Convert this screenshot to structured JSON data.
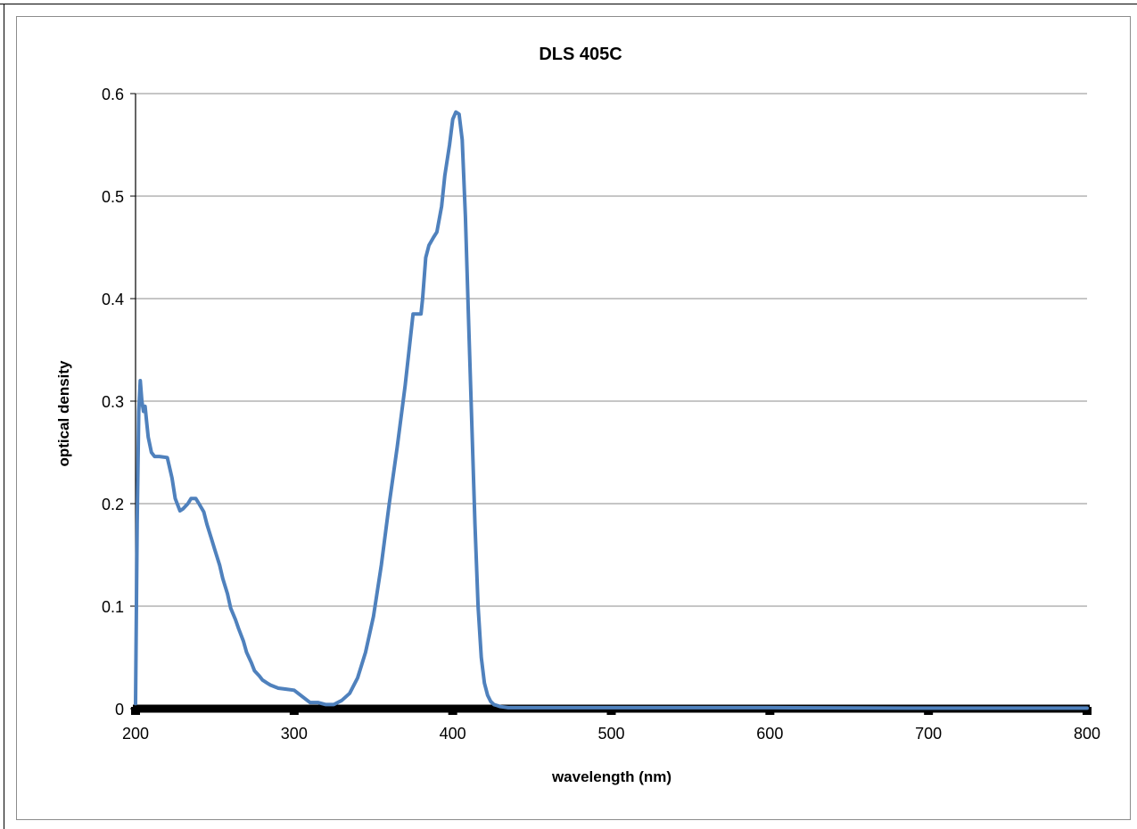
{
  "chart_data": {
    "type": "line",
    "title": "DLS 405C",
    "xlabel": "wavelength (nm)",
    "ylabel": "optical density",
    "xlim": [
      200,
      800
    ],
    "ylim": [
      0,
      0.6
    ],
    "x_ticks": [
      200,
      300,
      400,
      500,
      600,
      700,
      800
    ],
    "y_ticks": [
      0,
      0.1,
      0.2,
      0.3,
      0.4,
      0.5,
      0.6
    ],
    "x_tick_labels": [
      "200",
      "300",
      "400",
      "500",
      "600",
      "700",
      "800"
    ],
    "y_tick_labels": [
      "0",
      "0.1",
      "0.2",
      "0.3",
      "0.4",
      "0.5",
      "0.6"
    ],
    "grid": "horizontal",
    "legend": "none",
    "line_color": "#4f81bd",
    "series": [
      {
        "x": [
          200,
          201,
          202,
          203,
          204,
          205,
          206,
          207,
          208,
          210,
          212,
          215,
          220,
          223,
          225,
          228,
          230,
          233,
          235,
          238,
          240,
          243,
          245,
          248,
          250,
          253,
          255,
          258,
          260,
          263,
          265,
          268,
          270,
          273,
          275,
          278,
          280,
          283,
          285,
          290,
          295,
          300,
          305,
          310,
          315,
          320,
          323,
          325,
          330,
          335,
          340,
          345,
          350,
          355,
          360,
          365,
          370,
          375,
          380,
          381,
          383,
          385,
          388,
          390,
          393,
          395,
          398,
          400,
          402,
          404,
          406,
          408,
          410,
          412,
          414,
          416,
          418,
          420,
          422,
          424,
          426,
          428,
          430,
          435,
          440,
          450,
          500,
          600,
          700,
          800
        ],
        "y": [
          0.005,
          0.18,
          0.29,
          0.32,
          0.3,
          0.29,
          0.295,
          0.28,
          0.265,
          0.25,
          0.246,
          0.246,
          0.245,
          0.225,
          0.205,
          0.193,
          0.195,
          0.2,
          0.205,
          0.205,
          0.2,
          0.192,
          0.18,
          0.165,
          0.155,
          0.14,
          0.127,
          0.112,
          0.098,
          0.087,
          0.078,
          0.066,
          0.055,
          0.045,
          0.037,
          0.032,
          0.028,
          0.025,
          0.023,
          0.02,
          0.019,
          0.018,
          0.012,
          0.006,
          0.006,
          0.004,
          0.004,
          0.004,
          0.008,
          0.015,
          0.03,
          0.055,
          0.09,
          0.14,
          0.2,
          0.255,
          0.315,
          0.385,
          0.385,
          0.4,
          0.44,
          0.452,
          0.46,
          0.465,
          0.49,
          0.52,
          0.55,
          0.575,
          0.582,
          0.58,
          0.555,
          0.48,
          0.38,
          0.28,
          0.18,
          0.1,
          0.05,
          0.025,
          0.013,
          0.007,
          0.004,
          0.003,
          0.002,
          0.001,
          0.001,
          0.001,
          0.001,
          0.001,
          0.0005,
          0.0005
        ]
      }
    ]
  }
}
